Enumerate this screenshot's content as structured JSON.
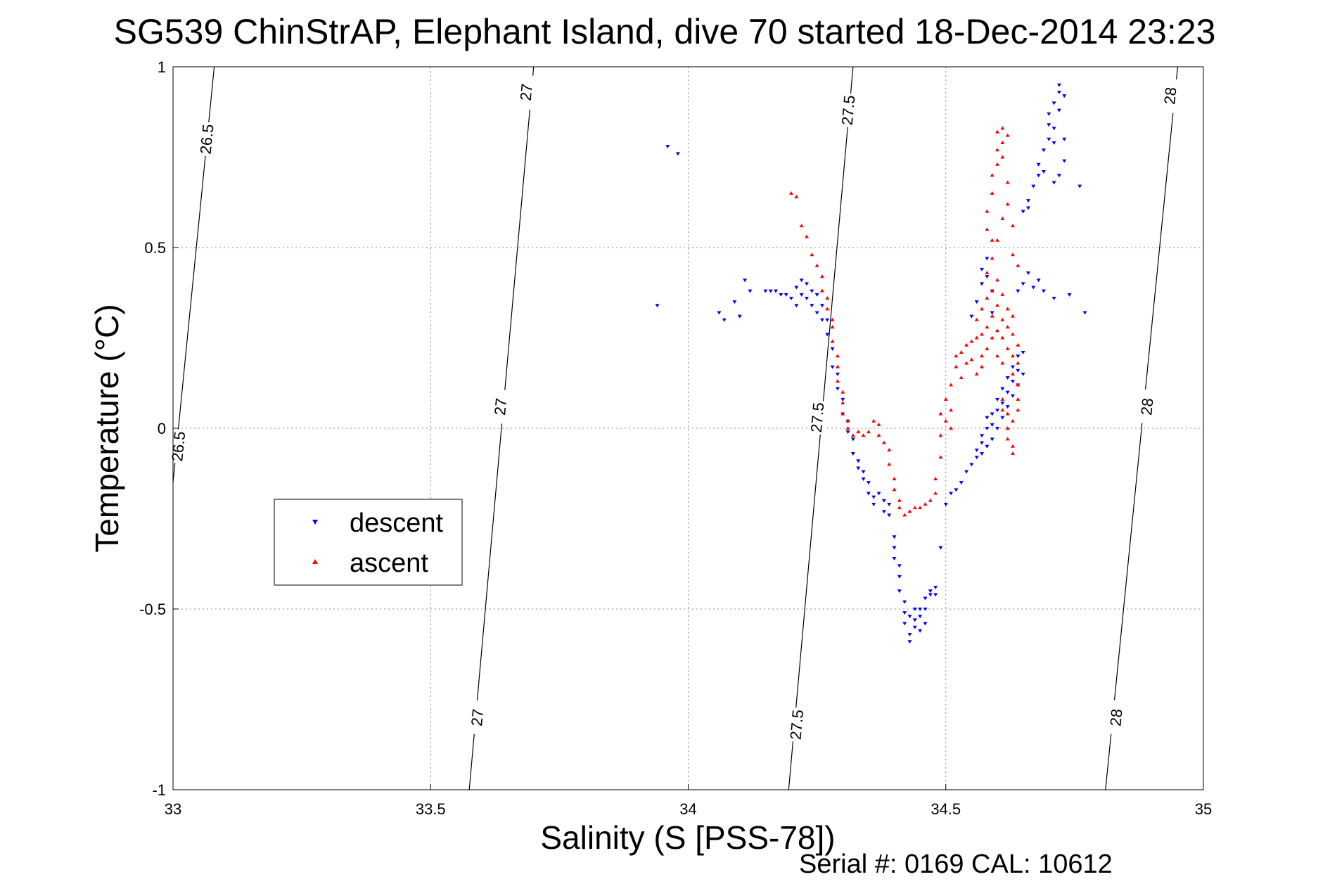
{
  "chart_data": {
    "type": "scatter",
    "title": "SG539 ChinStrAP, Elephant Island, dive 70 started 18-Dec-2014 23:23",
    "xlabel": "Salinity (S [PSS-78])",
    "ylabel": "Temperature (°C)",
    "xlim": [
      33,
      35
    ],
    "ylim": [
      -1,
      1
    ],
    "xticks": [
      33,
      33.5,
      34,
      34.5,
      35
    ],
    "xtick_labels": [
      "33",
      "33.5",
      "34",
      "34.5",
      "35"
    ],
    "yticks": [
      -1,
      -0.5,
      0,
      0.5,
      1
    ],
    "ytick_labels": [
      "-1",
      "-0.5",
      "0",
      "0.5",
      "1"
    ],
    "grid": true,
    "legend_position": "middle-left",
    "footer": "Serial #: 0169 CAL: 10612",
    "series": [
      {
        "name": "descent",
        "color": "#0000ff",
        "marker": "triangle-down",
        "points": [
          [
            33.94,
            0.34
          ],
          [
            33.96,
            0.78
          ],
          [
            33.98,
            0.76
          ],
          [
            34.06,
            0.32
          ],
          [
            34.07,
            0.3
          ],
          [
            34.09,
            0.35
          ],
          [
            34.1,
            0.31
          ],
          [
            34.11,
            0.41
          ],
          [
            34.12,
            0.38
          ],
          [
            34.15,
            0.38
          ],
          [
            34.16,
            0.38
          ],
          [
            34.17,
            0.38
          ],
          [
            34.18,
            0.37
          ],
          [
            34.19,
            0.37
          ],
          [
            34.2,
            0.36
          ],
          [
            34.21,
            0.39
          ],
          [
            34.21,
            0.34
          ],
          [
            34.22,
            0.41
          ],
          [
            34.22,
            0.37
          ],
          [
            34.23,
            0.4
          ],
          [
            34.23,
            0.36
          ],
          [
            34.24,
            0.34
          ],
          [
            34.24,
            0.38
          ],
          [
            34.25,
            0.37
          ],
          [
            34.25,
            0.32
          ],
          [
            34.26,
            0.34
          ],
          [
            34.26,
            0.3
          ],
          [
            34.27,
            0.3
          ],
          [
            34.27,
            0.26
          ],
          [
            34.28,
            0.22
          ],
          [
            34.28,
            0.17
          ],
          [
            34.29,
            0.15
          ],
          [
            34.29,
            0.11
          ],
          [
            34.3,
            0.08
          ],
          [
            34.3,
            0.04
          ],
          [
            34.31,
            0.02
          ],
          [
            34.31,
            -0.01
          ],
          [
            34.32,
            -0.03
          ],
          [
            34.32,
            -0.07
          ],
          [
            34.33,
            -0.09
          ],
          [
            34.33,
            -0.11
          ],
          [
            34.34,
            -0.12
          ],
          [
            34.34,
            -0.14
          ],
          [
            34.35,
            -0.15
          ],
          [
            34.35,
            -0.18
          ],
          [
            34.36,
            -0.19
          ],
          [
            34.36,
            -0.21
          ],
          [
            34.37,
            -0.18
          ],
          [
            34.38,
            -0.2
          ],
          [
            34.38,
            -0.23
          ],
          [
            34.39,
            -0.24
          ],
          [
            34.39,
            -0.21
          ],
          [
            34.4,
            -0.3
          ],
          [
            34.4,
            -0.33
          ],
          [
            34.4,
            -0.36
          ],
          [
            34.41,
            -0.38
          ],
          [
            34.41,
            -0.41
          ],
          [
            34.41,
            -0.45
          ],
          [
            34.42,
            -0.48
          ],
          [
            34.42,
            -0.51
          ],
          [
            34.42,
            -0.54
          ],
          [
            34.43,
            -0.57
          ],
          [
            34.43,
            -0.59
          ],
          [
            34.43,
            -0.52
          ],
          [
            34.44,
            -0.5
          ],
          [
            34.44,
            -0.55
          ],
          [
            34.44,
            -0.53
          ],
          [
            34.45,
            -0.5
          ],
          [
            34.45,
            -0.56
          ],
          [
            34.45,
            -0.52
          ],
          [
            34.46,
            -0.47
          ],
          [
            34.46,
            -0.5
          ],
          [
            34.46,
            -0.54
          ],
          [
            34.47,
            -0.46
          ],
          [
            34.47,
            -0.45
          ],
          [
            34.48,
            -0.44
          ],
          [
            34.48,
            -0.46
          ],
          [
            34.49,
            -0.33
          ],
          [
            34.5,
            -0.21
          ],
          [
            34.51,
            -0.18
          ],
          [
            34.52,
            -0.17
          ],
          [
            34.53,
            -0.15
          ],
          [
            34.54,
            -0.12
          ],
          [
            34.55,
            -0.1
          ],
          [
            34.56,
            -0.08
          ],
          [
            34.56,
            -0.06
          ],
          [
            34.57,
            -0.07
          ],
          [
            34.57,
            -0.04
          ],
          [
            34.57,
            -0.02
          ],
          [
            34.58,
            -0.05
          ],
          [
            34.58,
            0.0
          ],
          [
            34.58,
            0.03
          ],
          [
            34.59,
            -0.03
          ],
          [
            34.59,
            0.01
          ],
          [
            34.59,
            0.04
          ],
          [
            34.6,
            0.0
          ],
          [
            34.6,
            0.05
          ],
          [
            34.6,
            0.08
          ],
          [
            34.61,
            0.03
          ],
          [
            34.61,
            0.07
          ],
          [
            34.61,
            0.11
          ],
          [
            34.62,
            0.06
          ],
          [
            34.62,
            0.1
          ],
          [
            34.62,
            0.14
          ],
          [
            34.63,
            0.09
          ],
          [
            34.63,
            0.13
          ],
          [
            34.63,
            0.17
          ],
          [
            34.64,
            0.12
          ],
          [
            34.64,
            0.16
          ],
          [
            34.64,
            0.2
          ],
          [
            34.65,
            0.21
          ],
          [
            34.65,
            0.15
          ],
          [
            34.57,
            0.4
          ],
          [
            34.57,
            0.44
          ],
          [
            34.58,
            0.47
          ],
          [
            34.58,
            0.42
          ],
          [
            34.59,
            0.38
          ],
          [
            34.59,
            0.32
          ],
          [
            34.56,
            0.35
          ],
          [
            34.55,
            0.31
          ],
          [
            34.64,
            0.38
          ],
          [
            34.65,
            0.4
          ],
          [
            34.66,
            0.43
          ],
          [
            34.67,
            0.39
          ],
          [
            34.68,
            0.41
          ],
          [
            34.69,
            0.38
          ],
          [
            34.71,
            0.36
          ],
          [
            34.74,
            0.37
          ],
          [
            34.77,
            0.32
          ],
          [
            34.65,
            0.6
          ],
          [
            34.66,
            0.63
          ],
          [
            34.66,
            0.61
          ],
          [
            34.67,
            0.67
          ],
          [
            34.68,
            0.7
          ],
          [
            34.68,
            0.73
          ],
          [
            34.69,
            0.71
          ],
          [
            34.69,
            0.77
          ],
          [
            34.7,
            0.8
          ],
          [
            34.7,
            0.84
          ],
          [
            34.7,
            0.87
          ],
          [
            34.71,
            0.83
          ],
          [
            34.71,
            0.79
          ],
          [
            34.71,
            0.9
          ],
          [
            34.72,
            0.93
          ],
          [
            34.72,
            0.95
          ],
          [
            34.72,
            0.88
          ],
          [
            34.73,
            0.92
          ],
          [
            34.73,
            0.8
          ],
          [
            34.73,
            0.74
          ],
          [
            34.72,
            0.7
          ],
          [
            34.71,
            0.68
          ],
          [
            34.76,
            0.67
          ]
        ]
      },
      {
        "name": "ascent",
        "color": "#ff0000",
        "marker": "triangle-up",
        "points": [
          [
            34.2,
            0.65
          ],
          [
            34.21,
            0.64
          ],
          [
            34.22,
            0.56
          ],
          [
            34.23,
            0.53
          ],
          [
            34.24,
            0.48
          ],
          [
            34.25,
            0.45
          ],
          [
            34.26,
            0.42
          ],
          [
            34.26,
            0.38
          ],
          [
            34.27,
            0.36
          ],
          [
            34.27,
            0.33
          ],
          [
            34.28,
            0.3
          ],
          [
            34.28,
            0.28
          ],
          [
            34.28,
            0.24
          ],
          [
            34.29,
            0.2
          ],
          [
            34.29,
            0.17
          ],
          [
            34.29,
            0.13
          ],
          [
            34.3,
            0.1
          ],
          [
            34.3,
            0.07
          ],
          [
            34.3,
            0.04
          ],
          [
            34.31,
            0.02
          ],
          [
            34.31,
            0.0
          ],
          [
            34.32,
            -0.02
          ],
          [
            34.33,
            -0.01
          ],
          [
            34.34,
            -0.02
          ],
          [
            34.35,
            -0.01
          ],
          [
            34.36,
            0.02
          ],
          [
            34.37,
            0.01
          ],
          [
            34.37,
            -0.02
          ],
          [
            34.38,
            -0.04
          ],
          [
            34.39,
            -0.06
          ],
          [
            34.39,
            -0.1
          ],
          [
            34.4,
            -0.14
          ],
          [
            34.4,
            -0.17
          ],
          [
            34.41,
            -0.2
          ],
          [
            34.41,
            -0.22
          ],
          [
            34.42,
            -0.24
          ],
          [
            34.43,
            -0.23
          ],
          [
            34.44,
            -0.22
          ],
          [
            34.45,
            -0.22
          ],
          [
            34.46,
            -0.21
          ],
          [
            34.47,
            -0.2
          ],
          [
            34.48,
            -0.18
          ],
          [
            34.48,
            -0.14
          ],
          [
            34.49,
            -0.08
          ],
          [
            34.49,
            -0.02
          ],
          [
            34.49,
            0.04
          ],
          [
            34.5,
            0.08
          ],
          [
            34.5,
            0.02
          ],
          [
            34.51,
            0.0
          ],
          [
            34.51,
            0.05
          ],
          [
            34.51,
            0.12
          ],
          [
            34.52,
            0.17
          ],
          [
            34.52,
            0.2
          ],
          [
            34.53,
            0.14
          ],
          [
            34.53,
            0.21
          ],
          [
            34.54,
            0.18
          ],
          [
            34.54,
            0.23
          ],
          [
            34.55,
            0.24
          ],
          [
            34.55,
            0.19
          ],
          [
            34.56,
            0.25
          ],
          [
            34.56,
            0.3
          ],
          [
            34.56,
            0.15
          ],
          [
            34.57,
            0.17
          ],
          [
            34.57,
            0.2
          ],
          [
            34.57,
            0.26
          ],
          [
            34.57,
            0.33
          ],
          [
            34.58,
            0.22
          ],
          [
            34.58,
            0.28
          ],
          [
            34.58,
            0.36
          ],
          [
            34.58,
            0.43
          ],
          [
            34.59,
            0.25
          ],
          [
            34.59,
            0.31
          ],
          [
            34.59,
            0.38
          ],
          [
            34.59,
            0.47
          ],
          [
            34.6,
            0.2
          ],
          [
            34.6,
            0.27
          ],
          [
            34.6,
            0.34
          ],
          [
            34.6,
            0.41
          ],
          [
            34.6,
            0.52
          ],
          [
            34.61,
            0.18
          ],
          [
            34.61,
            0.25
          ],
          [
            34.61,
            0.3
          ],
          [
            34.61,
            0.37
          ],
          [
            34.61,
            0.58
          ],
          [
            34.62,
            0.22
          ],
          [
            34.62,
            0.28
          ],
          [
            34.62,
            0.33
          ],
          [
            34.62,
            0.62
          ],
          [
            34.63,
            0.15
          ],
          [
            34.63,
            0.2
          ],
          [
            34.63,
            0.26
          ],
          [
            34.63,
            0.31
          ],
          [
            34.64,
            0.18
          ],
          [
            34.64,
            0.23
          ],
          [
            34.64,
            0.12
          ],
          [
            34.61,
            0.05
          ],
          [
            34.61,
            0.08
          ],
          [
            34.62,
            0.0
          ],
          [
            34.62,
            0.04
          ],
          [
            34.62,
            -0.03
          ],
          [
            34.63,
            0.02
          ],
          [
            34.63,
            -0.05
          ],
          [
            34.63,
            -0.07
          ],
          [
            34.64,
            0.05
          ],
          [
            34.64,
            0.08
          ],
          [
            34.58,
            0.55
          ],
          [
            34.58,
            0.6
          ],
          [
            34.59,
            0.65
          ],
          [
            34.59,
            0.7
          ],
          [
            34.6,
            0.73
          ],
          [
            34.6,
            0.77
          ],
          [
            34.6,
            0.82
          ],
          [
            34.61,
            0.79
          ],
          [
            34.61,
            0.75
          ],
          [
            34.61,
            0.83
          ],
          [
            34.62,
            0.81
          ],
          [
            34.62,
            0.68
          ],
          [
            34.63,
            0.56
          ],
          [
            34.63,
            0.48
          ],
          [
            34.64,
            0.45
          ],
          [
            34.59,
            0.52
          ]
        ]
      }
    ],
    "isopycnals": [
      {
        "label": "26.5",
        "points": [
          [
            33.08,
            1.0
          ],
          [
            33.0,
            -0.15
          ]
        ],
        "label_at": [
          [
            33.065,
            0.8
          ],
          [
            33.01,
            -0.05
          ]
        ]
      },
      {
        "label": "27",
        "points": [
          [
            33.7,
            1.0
          ],
          [
            33.575,
            -1.0
          ]
        ],
        "label_at": [
          [
            33.685,
            0.93
          ],
          [
            33.635,
            0.06
          ],
          [
            33.59,
            -0.8
          ]
        ]
      },
      {
        "label": "27.5",
        "points": [
          [
            34.32,
            1.0
          ],
          [
            34.195,
            -1.0
          ]
        ],
        "label_at": [
          [
            34.31,
            0.88
          ],
          [
            34.25,
            0.03
          ],
          [
            34.21,
            -0.82
          ]
        ]
      },
      {
        "label": "28",
        "points": [
          [
            34.95,
            1.0
          ],
          [
            34.81,
            -1.0
          ]
        ],
        "label_at": [
          [
            34.935,
            0.92
          ],
          [
            34.89,
            0.06
          ],
          [
            34.83,
            -0.8
          ]
        ]
      }
    ]
  }
}
